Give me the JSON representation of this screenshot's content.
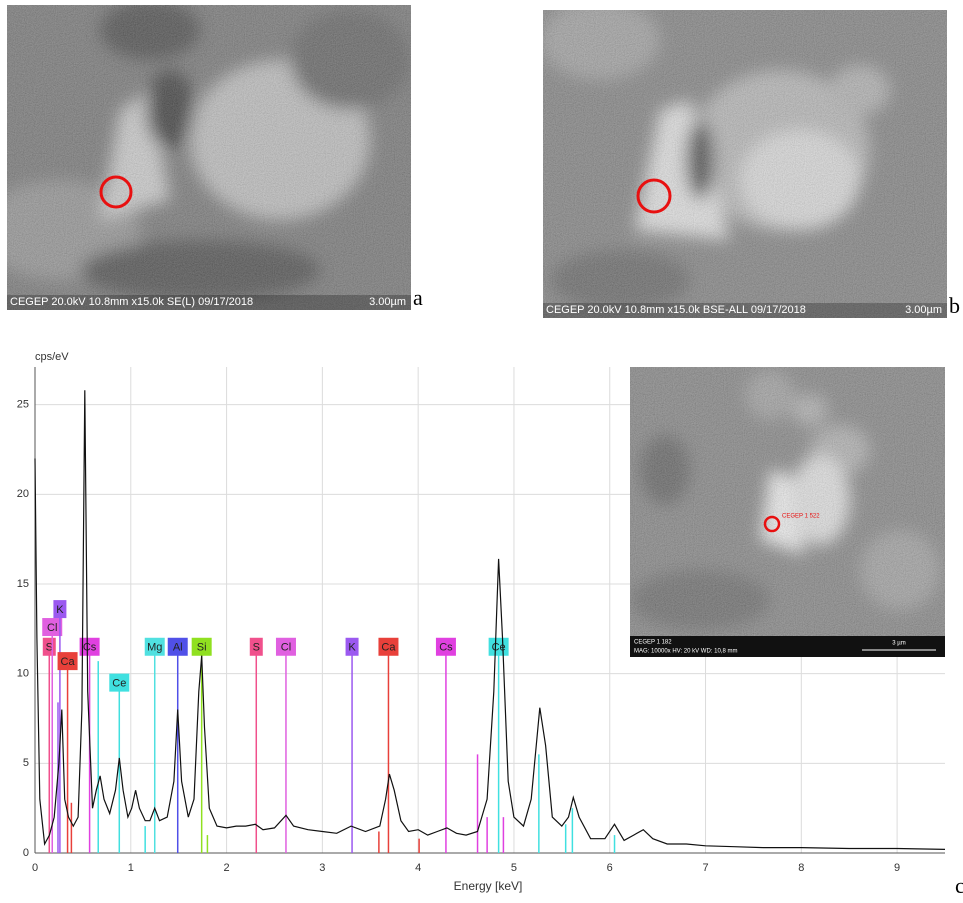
{
  "panels": [
    {
      "caption": "CEGEP 20.0kV 10.8mm x15.0k SE(L) 09/17/2018",
      "scale": "3.00µm",
      "label": "a"
    },
    {
      "caption": "CEGEP 20.0kV 10.8mm x15.0k BSE-ALL 09/17/2018",
      "scale": "3.00µm",
      "label": "b"
    }
  ],
  "inset": {
    "marker": "CEGEP 1 522",
    "caption": "CEGEP 1 182",
    "info": "MAG: 10000x   HV: 20 kV   WD: 10,8 mm",
    "scale": "3 µm"
  },
  "chart_data": {
    "type": "line",
    "figure_label": "c",
    "y_label": "cps/eV",
    "x_label": "Energy [keV]",
    "color": "#111111",
    "x": [
      0,
      0.02,
      0.05,
      0.1,
      0.15,
      0.2,
      0.25,
      0.28,
      0.31,
      0.35,
      0.4,
      0.45,
      0.49,
      0.52,
      0.55,
      0.6,
      0.64,
      0.68,
      0.72,
      0.78,
      0.84,
      0.88,
      0.92,
      0.97,
      1.01,
      1.05,
      1.09,
      1.15,
      1.2,
      1.25,
      1.3,
      1.38,
      1.45,
      1.49,
      1.53,
      1.6,
      1.66,
      1.71,
      1.74,
      1.77,
      1.82,
      1.9,
      2.0,
      2.1,
      2.2,
      2.3,
      2.38,
      2.5,
      2.62,
      2.7,
      2.85,
      3.0,
      3.15,
      3.3,
      3.45,
      3.6,
      3.66,
      3.7,
      3.75,
      3.82,
      3.9,
      4.0,
      4.1,
      4.2,
      4.3,
      4.4,
      4.5,
      4.62,
      4.72,
      4.79,
      4.84,
      4.88,
      4.94,
      5.0,
      5.1,
      5.18,
      5.27,
      5.33,
      5.4,
      5.5,
      5.57,
      5.62,
      5.68,
      5.8,
      5.95,
      6.05,
      6.15,
      6.25,
      6.35,
      6.45,
      6.6,
      6.8,
      7.0,
      7.3,
      7.6,
      8.0,
      8.5,
      9.0,
      9.5
    ],
    "values": [
      22,
      12,
      3,
      0.5,
      1,
      2,
      5,
      8,
      3,
      2,
      1.5,
      2,
      8,
      25.8,
      9,
      2.5,
      3.5,
      4.3,
      3,
      2.2,
      3.5,
      5.3,
      3.5,
      2,
      2.5,
      3.5,
      2.5,
      1.8,
      1.8,
      2.5,
      1.8,
      2,
      4,
      8,
      4,
      2,
      3,
      9,
      11,
      7,
      2.5,
      1.5,
      1.4,
      1.5,
      1.5,
      1.6,
      1.3,
      1.4,
      2.1,
      1.5,
      1.3,
      1.2,
      1.1,
      1.5,
      1.2,
      1.5,
      3,
      4.4,
      3.5,
      1.8,
      1.2,
      1.3,
      1,
      1.2,
      1.4,
      1.1,
      1,
      1.2,
      3,
      9,
      16.4,
      12,
      4,
      2,
      1.5,
      3,
      8.1,
      6,
      2,
      1.5,
      2,
      3.1,
      2,
      0.8,
      0.8,
      1.6,
      0.7,
      1,
      1.3,
      0.8,
      0.5,
      0.5,
      0.4,
      0.35,
      0.3,
      0.3,
      0.25,
      0.25,
      0.2
    ],
    "xlim": [
      0,
      9.5
    ],
    "ylim": [
      0,
      27.1
    ],
    "xticks": [
      0,
      1,
      2,
      3,
      4,
      5,
      6,
      7,
      8,
      9
    ],
    "yticks": [
      0,
      5,
      10,
      15,
      20,
      25
    ],
    "grid": true,
    "elements": [
      {
        "label": "S",
        "x": 0.149,
        "y": 11.5,
        "color": "#f0508c"
      },
      {
        "label": "Cl",
        "x": 0.18,
        "y": 12.6,
        "color": "#e060e0"
      },
      {
        "label": "K",
        "x": 0.26,
        "y": 13.6,
        "color": "#9b59f0"
      },
      {
        "label": "Ca",
        "x": 0.34,
        "y": 10.7,
        "color": "#e8403a"
      },
      {
        "label": "Cs",
        "x": 0.57,
        "y": 11.5,
        "color": "#e040e0"
      },
      {
        "label": "Ce",
        "x": 0.88,
        "y": 9.5,
        "color": "#40e0e0"
      },
      {
        "label": "Mg",
        "x": 1.25,
        "y": 11.5,
        "color": "#50e0e0"
      },
      {
        "label": "Al",
        "x": 1.49,
        "y": 11.5,
        "color": "#5050e8"
      },
      {
        "label": "Si",
        "x": 1.74,
        "y": 11.5,
        "color": "#90e020"
      },
      {
        "label": "S",
        "x": 2.31,
        "y": 11.5,
        "color": "#f0508c"
      },
      {
        "label": "Cl",
        "x": 2.62,
        "y": 11.5,
        "color": "#e060e0"
      },
      {
        "label": "K",
        "x": 3.31,
        "y": 11.5,
        "color": "#9b59f0"
      },
      {
        "label": "Ca",
        "x": 3.69,
        "y": 11.5,
        "color": "#e8403a"
      },
      {
        "label": "Cs",
        "x": 4.29,
        "y": 11.5,
        "color": "#e040e0"
      },
      {
        "label": "Ce",
        "x": 4.84,
        "y": 11.5,
        "color": "#40e0e0"
      }
    ],
    "lines": [
      {
        "x": 0.66,
        "y": 10.7,
        "color": "#40e0e0"
      },
      {
        "x": 0.24,
        "y": 8.4,
        "color": "#9b59f0"
      },
      {
        "x": 0.38,
        "y": 2.8,
        "color": "#e8403a"
      },
      {
        "x": 1.15,
        "y": 1.5,
        "color": "#40e0e0"
      },
      {
        "x": 1.8,
        "y": 1,
        "color": "#90e020"
      },
      {
        "x": 3.59,
        "y": 1.2,
        "color": "#e8403a"
      },
      {
        "x": 4.01,
        "y": 0.8,
        "color": "#e8403a"
      },
      {
        "x": 4.62,
        "y": 5.5,
        "color": "#e040e0"
      },
      {
        "x": 4.72,
        "y": 2,
        "color": "#e040e0"
      },
      {
        "x": 4.89,
        "y": 2,
        "color": "#e040e0"
      },
      {
        "x": 5.26,
        "y": 5.5,
        "color": "#40e0e0"
      },
      {
        "x": 5.54,
        "y": 1.6,
        "color": "#40e0e0"
      },
      {
        "x": 5.61,
        "y": 2.5,
        "color": "#40e0e0"
      },
      {
        "x": 6.05,
        "y": 1,
        "color": "#40e0e0"
      }
    ]
  }
}
